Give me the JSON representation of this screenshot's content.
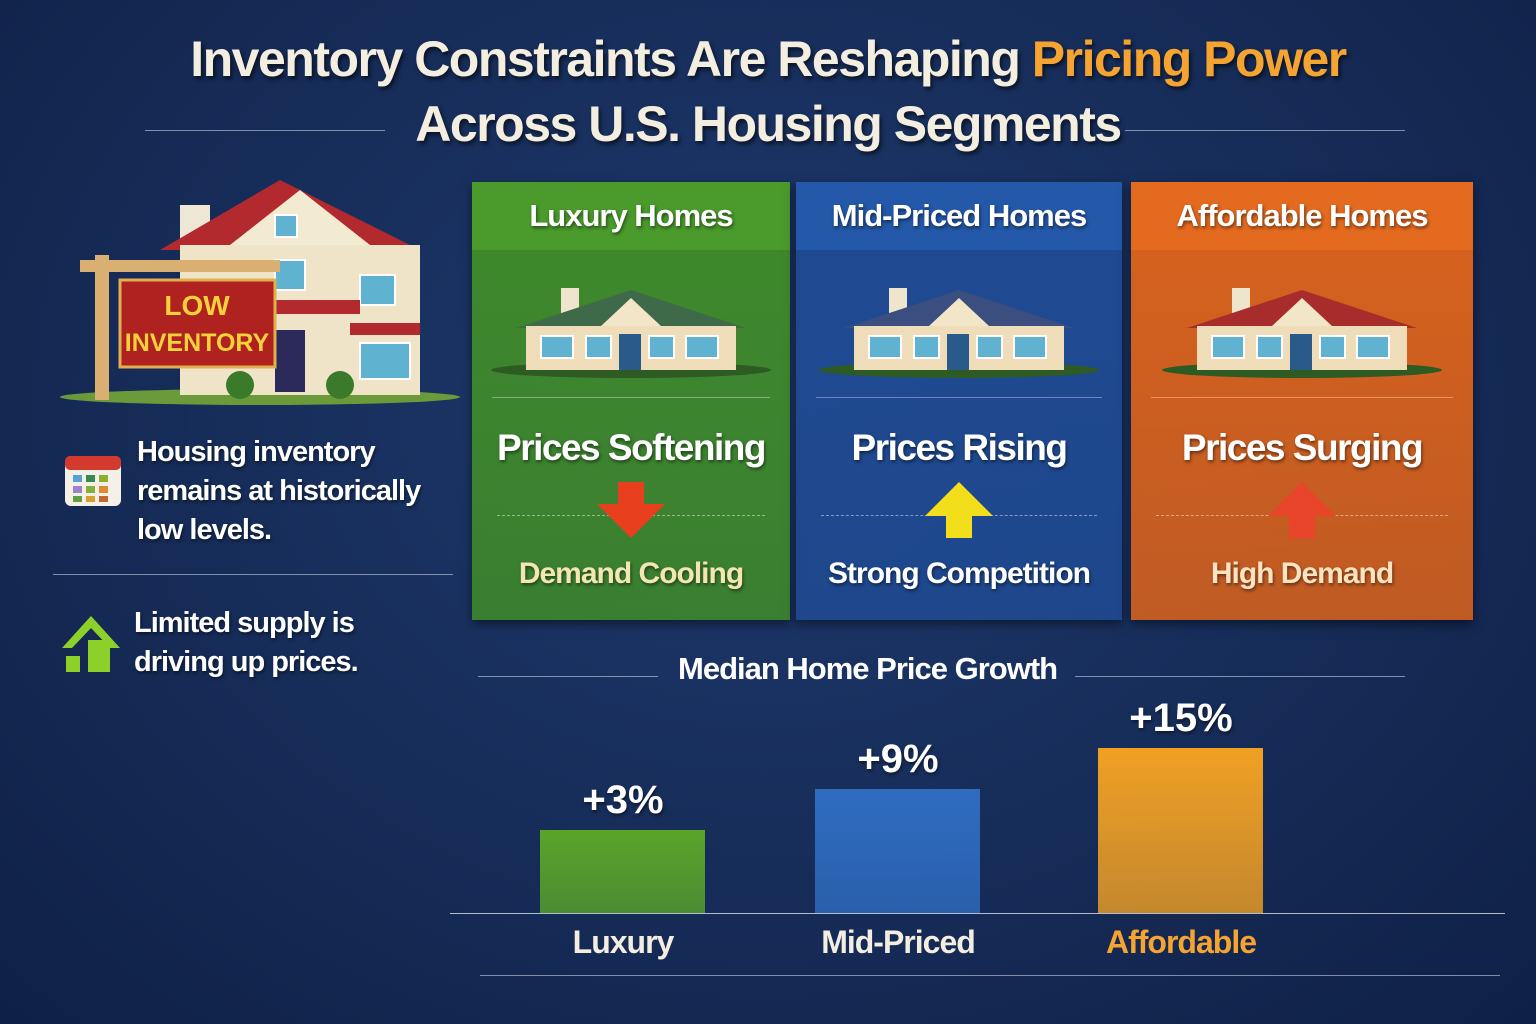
{
  "title": {
    "line1_part1": "Inventory Constraints Are Reshaping ",
    "line1_highlight": "Pricing Power",
    "line2": "Across U.S. Housing Segments"
  },
  "sidebar": {
    "sign_line1": "LOW",
    "sign_line2": "INVENTORY",
    "facts": [
      {
        "icon": "calendar-icon",
        "text": "Housing inventory remains at historically low levels."
      },
      {
        "icon": "house-growth-icon",
        "text": "Limited supply is driving up prices."
      }
    ]
  },
  "segments": [
    {
      "name": "Luxury Homes",
      "status": "Prices Softening",
      "trend": "down",
      "note": "Demand Cooling",
      "color": "#3f8a2a",
      "header_color": "#4a9a2c",
      "arrow_color": "#e8401f",
      "note_color": "#f3e6b0"
    },
    {
      "name": "Mid-Priced Homes",
      "status": "Prices Rising",
      "trend": "up",
      "note": "Strong Competition",
      "color": "#1f4a92",
      "header_color": "#2458a8",
      "arrow_color": "#f2de1a",
      "note_color": "#ffffff"
    },
    {
      "name": "Affordable Homes",
      "status": "Prices Surging",
      "trend": "up",
      "note": "High Demand",
      "color": "#d9621c",
      "header_color": "#e36a1f",
      "arrow_color": "#e8452a",
      "note_color": "#fbe3c0"
    }
  ],
  "chart_data": {
    "type": "bar",
    "title": "Median Home Price Growth",
    "categories": [
      "Luxury",
      "Mid-Priced",
      "Affordable"
    ],
    "values": [
      3,
      9,
      15
    ],
    "data_labels": [
      "+3%",
      "+9%",
      "+15%"
    ],
    "colors": [
      "#5aa42a",
      "#2f6cc0",
      "#f0a024"
    ],
    "category_label_colors": [
      "#f3eee0",
      "#f3eee0",
      "#f5a431"
    ],
    "unit": "%",
    "grid": false
  }
}
